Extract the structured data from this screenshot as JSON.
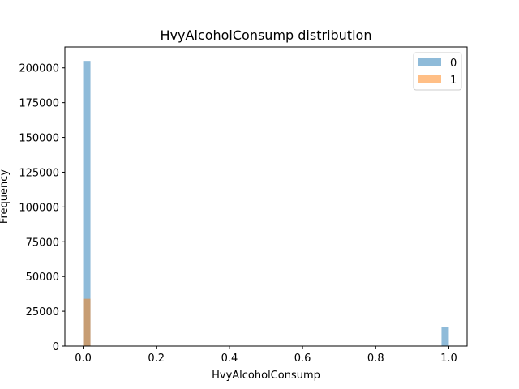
{
  "chart_data": {
    "type": "bar",
    "title": "HvyAlcoholConsump distribution",
    "xlabel": "HvyAlcoholConsump",
    "ylabel": "Frequency",
    "xlim": [
      -0.05,
      1.05
    ],
    "ylim": [
      0,
      215000
    ],
    "xticks": [
      0.0,
      0.2,
      0.4,
      0.6,
      0.8,
      1.0
    ],
    "xtick_labels": [
      "0.0",
      "0.2",
      "0.4",
      "0.6",
      "0.8",
      "1.0"
    ],
    "yticks": [
      0,
      25000,
      50000,
      75000,
      100000,
      125000,
      150000,
      175000,
      200000
    ],
    "ytick_labels": [
      "0",
      "25000",
      "50000",
      "75000",
      "100000",
      "125000",
      "150000",
      "175000",
      "200000"
    ],
    "bin_width": 0.02,
    "legend_position": "top-right",
    "series": [
      {
        "name": "0",
        "color": "#1f77b4",
        "opacity": 0.5,
        "bins": [
          {
            "x": 0.0,
            "value": 205000
          },
          {
            "x": 0.98,
            "value": 13500
          }
        ]
      },
      {
        "name": "1",
        "color": "#ff7f0e",
        "opacity": 0.5,
        "bins": [
          {
            "x": 0.0,
            "value": 34000
          },
          {
            "x": 0.98,
            "value": 0
          }
        ]
      }
    ]
  }
}
